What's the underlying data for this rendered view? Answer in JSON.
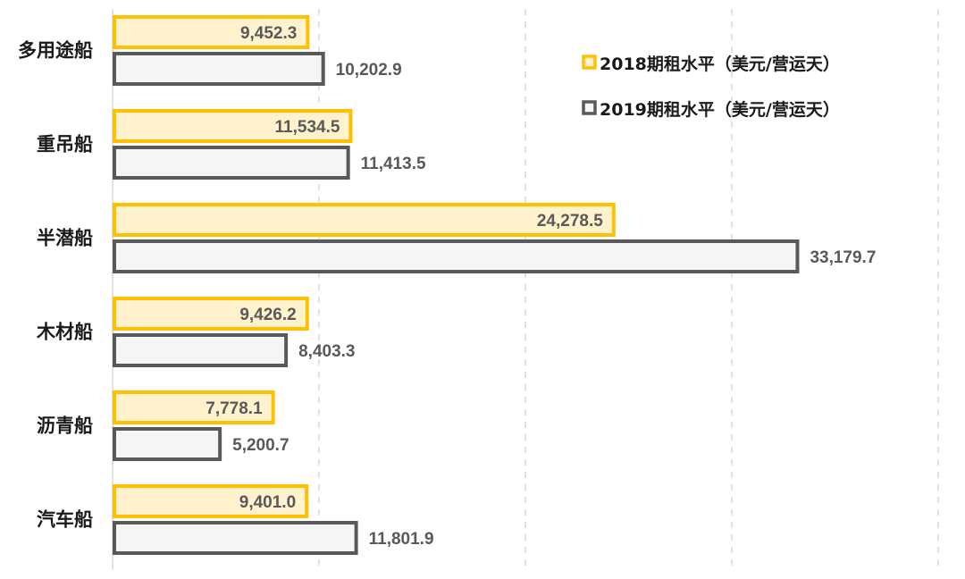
{
  "chart_data": {
    "type": "bar",
    "orientation": "horizontal",
    "categories": [
      "多用途船",
      "重吊船",
      "半潜船",
      "木材船",
      "沥青船",
      "汽车船"
    ],
    "series": [
      {
        "name": "2018期租水平（美元/营运天）",
        "values": [
          9452.3,
          11534.5,
          24278.5,
          9426.2,
          7778.1,
          9401.0
        ],
        "labels": [
          "9,452.3",
          "11,534.5",
          "24,278.5",
          "9,426.2",
          "7,778.1",
          "9,401.0"
        ],
        "fill": "#fff2cc",
        "stroke": "#ffc000"
      },
      {
        "name": "2019期租水平（美元/营运天）",
        "values": [
          10202.9,
          11413.5,
          33179.7,
          8403.3,
          5200.7,
          11801.9
        ],
        "labels": [
          "10,202.9",
          "11,413.5",
          "33,179.7",
          "8,403.3",
          "5,200.7",
          "11,801.9"
        ],
        "fill": "#f5f5f5",
        "stroke": "#595959"
      }
    ],
    "xlim": [
      0,
      40000
    ],
    "x_gridlines": [
      10000,
      20000,
      30000,
      40000
    ],
    "grid": true,
    "grid_style": "dashed",
    "legend_position": "top-right",
    "title": "",
    "xlabel": "",
    "ylabel": ""
  }
}
